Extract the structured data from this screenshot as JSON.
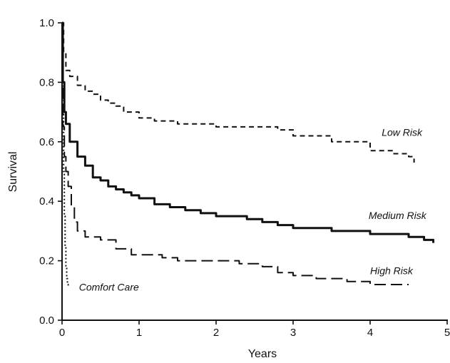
{
  "chart_data": {
    "type": "line",
    "xlabel": "Years",
    "ylabel": "Survival",
    "xlim": [
      0,
      5
    ],
    "ylim": [
      0,
      1
    ],
    "x_ticks": [
      "0",
      "1",
      "2",
      "3",
      "4",
      "5"
    ],
    "y_ticks": [
      "0.0",
      "0.2",
      "0.4",
      "0.6",
      "0.8",
      "1.0"
    ],
    "grid": false,
    "legend": "none (series labeled directly on chart)",
    "series": [
      {
        "name": "Low Risk",
        "style": "short-dash",
        "color": "#111111",
        "points": [
          [
            0,
            1.0
          ],
          [
            0.02,
            0.9
          ],
          [
            0.05,
            0.84
          ],
          [
            0.1,
            0.82
          ],
          [
            0.2,
            0.79
          ],
          [
            0.3,
            0.77
          ],
          [
            0.4,
            0.76
          ],
          [
            0.5,
            0.74
          ],
          [
            0.6,
            0.73
          ],
          [
            0.7,
            0.72
          ],
          [
            0.8,
            0.7
          ],
          [
            1.0,
            0.68
          ],
          [
            1.2,
            0.67
          ],
          [
            1.5,
            0.66
          ],
          [
            2.0,
            0.65
          ],
          [
            2.5,
            0.65
          ],
          [
            2.8,
            0.64
          ],
          [
            3.0,
            0.62
          ],
          [
            3.5,
            0.6
          ],
          [
            4.0,
            0.57
          ],
          [
            4.3,
            0.56
          ],
          [
            4.5,
            0.55
          ],
          [
            4.57,
            0.53
          ]
        ],
        "label_at": [
          4.15,
          0.62
        ]
      },
      {
        "name": "Medium Risk",
        "style": "solid",
        "color": "#111111",
        "points": [
          [
            0,
            1.0
          ],
          [
            0.01,
            0.8
          ],
          [
            0.03,
            0.7
          ],
          [
            0.05,
            0.66
          ],
          [
            0.1,
            0.6
          ],
          [
            0.2,
            0.55
          ],
          [
            0.3,
            0.52
          ],
          [
            0.4,
            0.48
          ],
          [
            0.5,
            0.47
          ],
          [
            0.6,
            0.45
          ],
          [
            0.7,
            0.44
          ],
          [
            0.8,
            0.43
          ],
          [
            0.9,
            0.42
          ],
          [
            1.0,
            0.41
          ],
          [
            1.2,
            0.39
          ],
          [
            1.4,
            0.38
          ],
          [
            1.6,
            0.37
          ],
          [
            1.8,
            0.36
          ],
          [
            2.0,
            0.35
          ],
          [
            2.2,
            0.35
          ],
          [
            2.4,
            0.34
          ],
          [
            2.6,
            0.33
          ],
          [
            2.8,
            0.32
          ],
          [
            3.0,
            0.31
          ],
          [
            3.5,
            0.3
          ],
          [
            4.0,
            0.29
          ],
          [
            4.5,
            0.28
          ],
          [
            4.7,
            0.27
          ],
          [
            4.82,
            0.26
          ]
        ],
        "label_at": [
          3.98,
          0.34
        ]
      },
      {
        "name": "High Risk",
        "style": "long-dash",
        "color": "#111111",
        "points": [
          [
            0,
            1.0
          ],
          [
            0.01,
            0.65
          ],
          [
            0.03,
            0.55
          ],
          [
            0.05,
            0.5
          ],
          [
            0.08,
            0.45
          ],
          [
            0.12,
            0.38
          ],
          [
            0.16,
            0.33
          ],
          [
            0.2,
            0.3
          ],
          [
            0.3,
            0.28
          ],
          [
            0.5,
            0.27
          ],
          [
            0.7,
            0.24
          ],
          [
            0.9,
            0.22
          ],
          [
            1.0,
            0.22
          ],
          [
            1.3,
            0.21
          ],
          [
            1.5,
            0.2
          ],
          [
            1.8,
            0.2
          ],
          [
            2.0,
            0.2
          ],
          [
            2.3,
            0.19
          ],
          [
            2.6,
            0.18
          ],
          [
            2.8,
            0.16
          ],
          [
            3.0,
            0.15
          ],
          [
            3.3,
            0.14
          ],
          [
            3.5,
            0.14
          ],
          [
            3.7,
            0.13
          ],
          [
            4.0,
            0.12
          ],
          [
            4.5,
            0.12
          ]
        ],
        "label_at": [
          4.0,
          0.155
        ]
      },
      {
        "name": "Comfort Care",
        "style": "dotted",
        "color": "#111111",
        "points": [
          [
            0,
            1.0
          ],
          [
            0.01,
            0.8
          ],
          [
            0.02,
            0.5
          ],
          [
            0.03,
            0.35
          ],
          [
            0.04,
            0.25
          ],
          [
            0.05,
            0.18
          ],
          [
            0.06,
            0.14
          ],
          [
            0.07,
            0.12
          ],
          [
            0.08,
            0.11
          ]
        ],
        "label_at": [
          0.22,
          0.1
        ]
      }
    ]
  }
}
